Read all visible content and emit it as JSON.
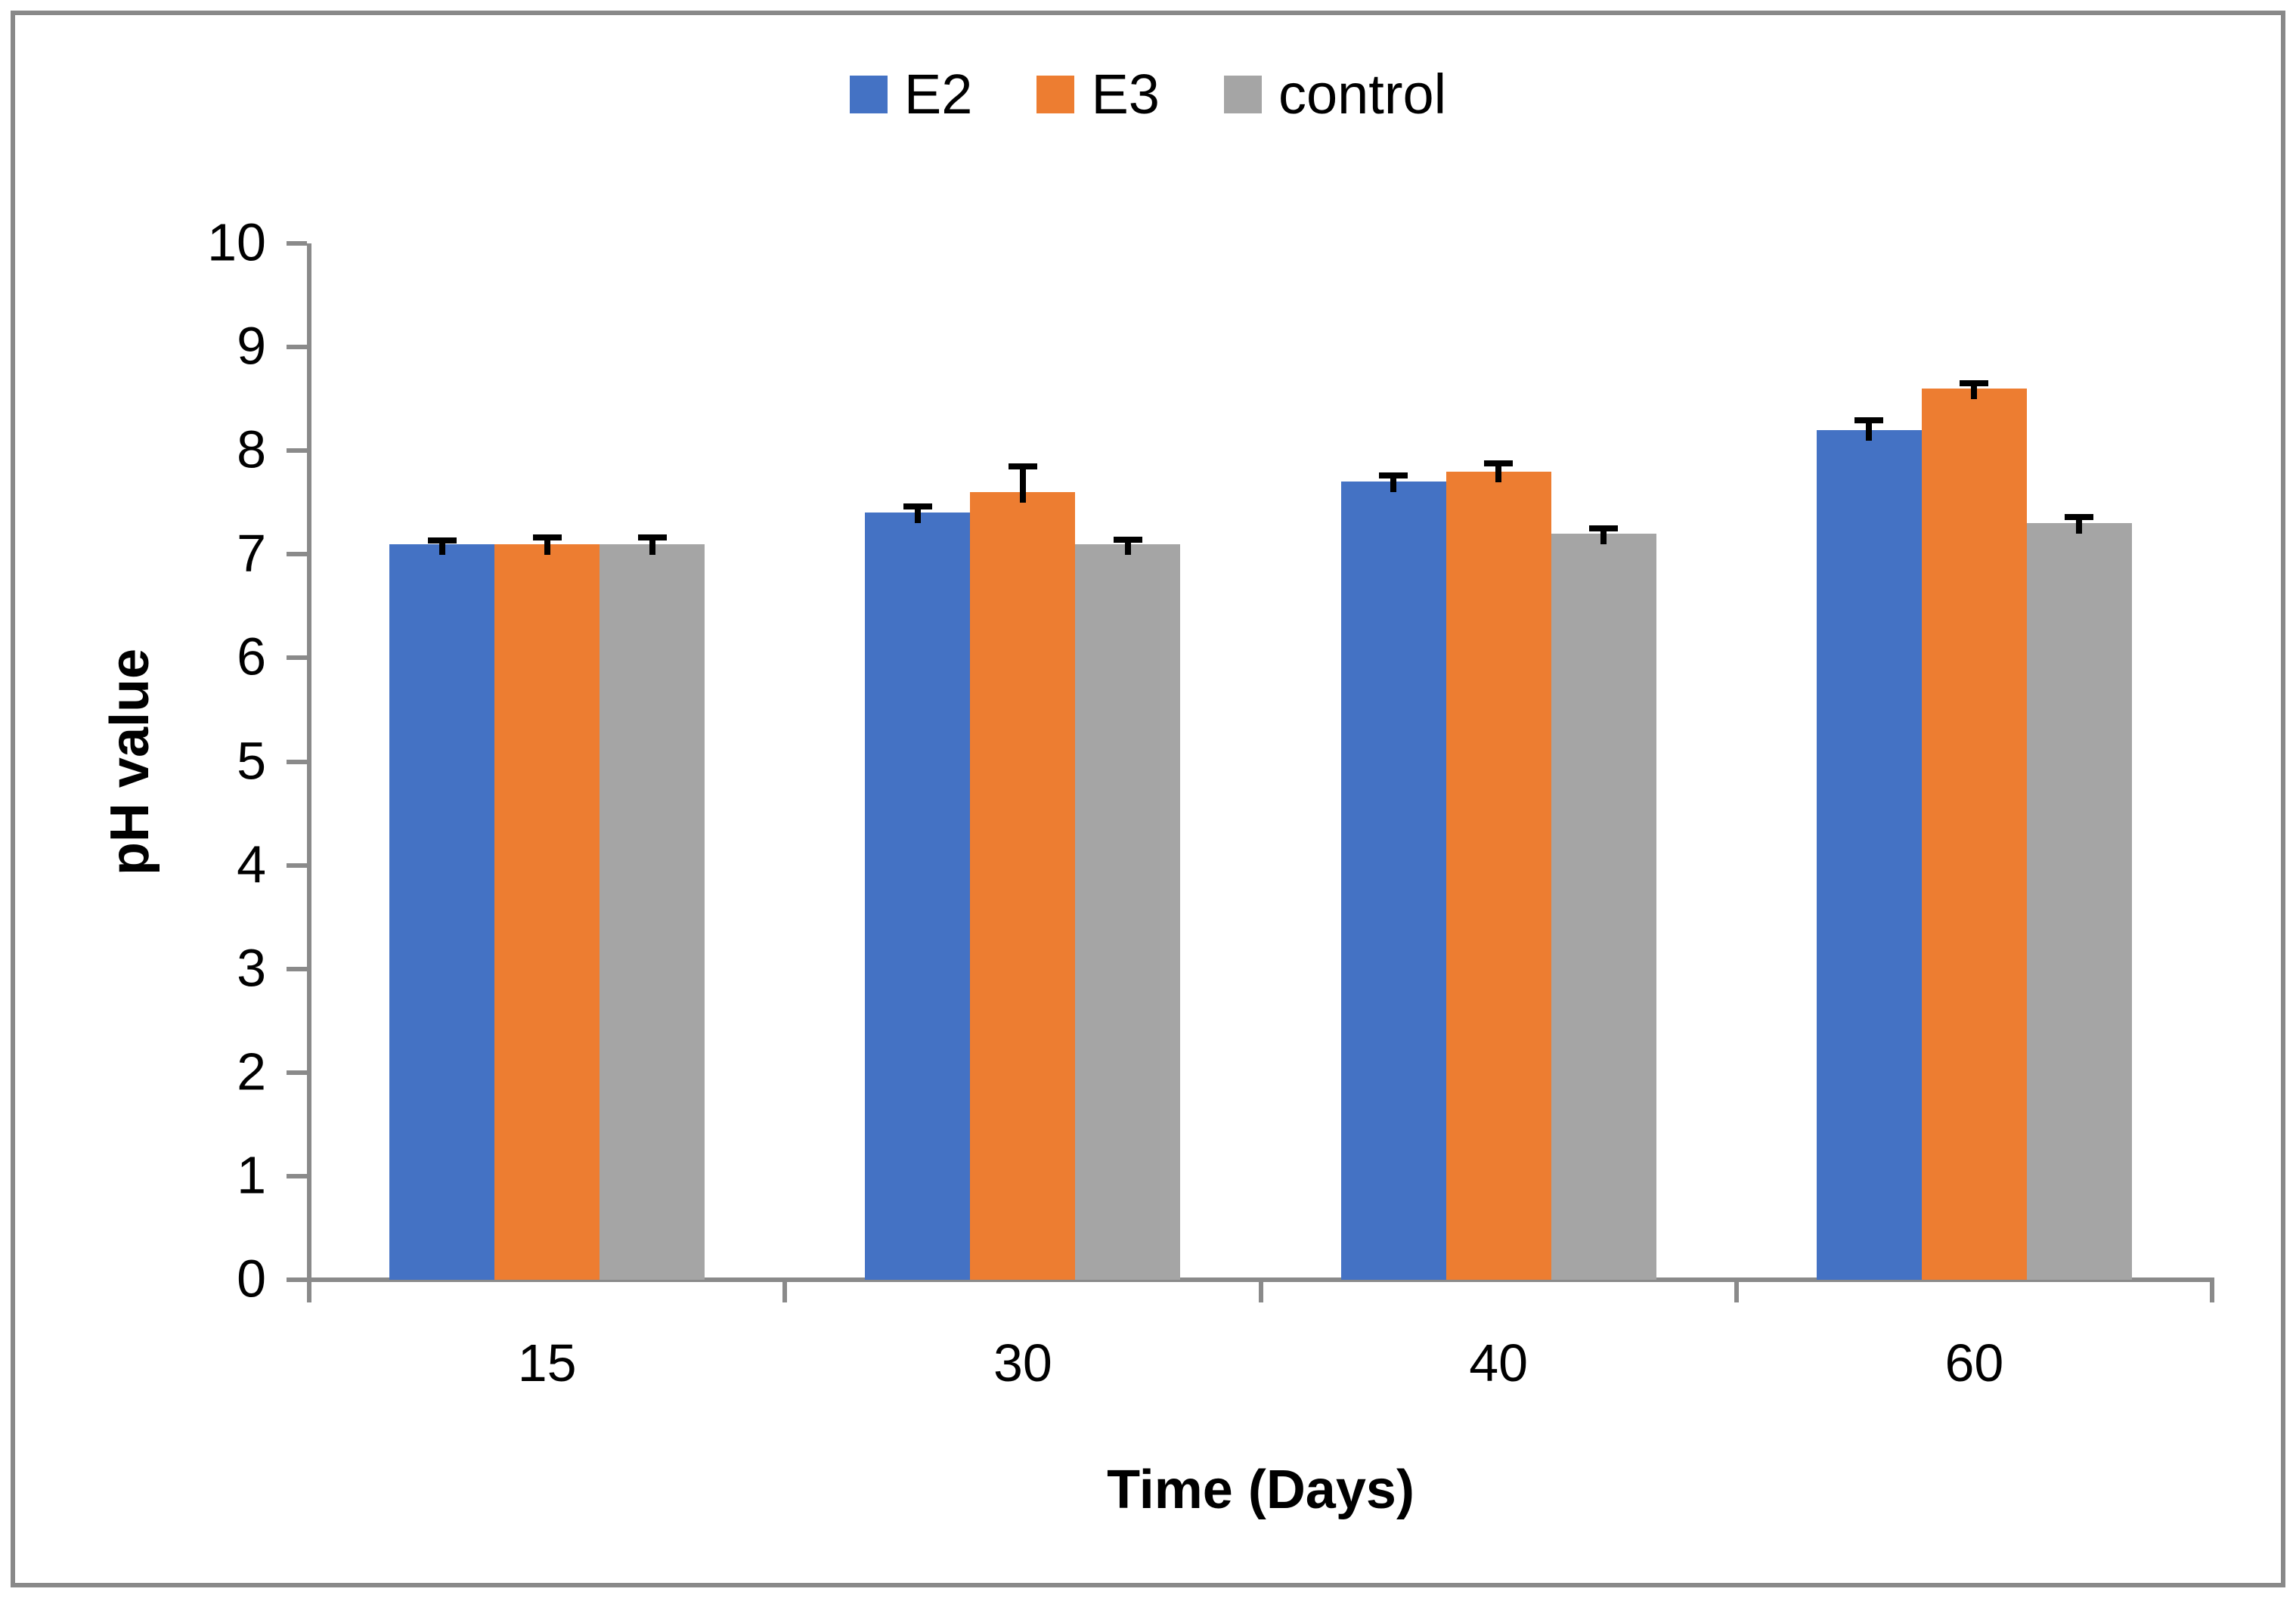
{
  "figure": {
    "background": "#ffffff",
    "border_color": "#898989"
  },
  "chart_data": {
    "type": "bar",
    "title": "",
    "xlabel": "Time (Days)",
    "ylabel": "pH value",
    "categories": [
      "15",
      "30",
      "40",
      "60"
    ],
    "series": [
      {
        "name": "E2",
        "color": "#4472C4",
        "values": [
          7.1,
          7.4,
          7.7,
          8.2
        ],
        "errors_plus": [
          0.03,
          0.06,
          0.06,
          0.09
        ]
      },
      {
        "name": "E3",
        "color": "#ED7D31",
        "values": [
          7.1,
          7.6,
          7.8,
          8.6
        ],
        "errors_plus": [
          0.06,
          0.25,
          0.08,
          0.05
        ]
      },
      {
        "name": "control",
        "color": "#A5A5A5",
        "values": [
          7.1,
          7.1,
          7.2,
          7.3
        ],
        "errors_plus": [
          0.06,
          0.04,
          0.05,
          0.06
        ]
      }
    ],
    "ylim": [
      0,
      10
    ],
    "yticks": [
      0,
      1,
      2,
      3,
      4,
      5,
      6,
      7,
      8,
      9,
      10
    ],
    "grid": false,
    "legend_position": "top",
    "axis_color": "#8a8a8a",
    "error_bar_color": "#000000"
  }
}
